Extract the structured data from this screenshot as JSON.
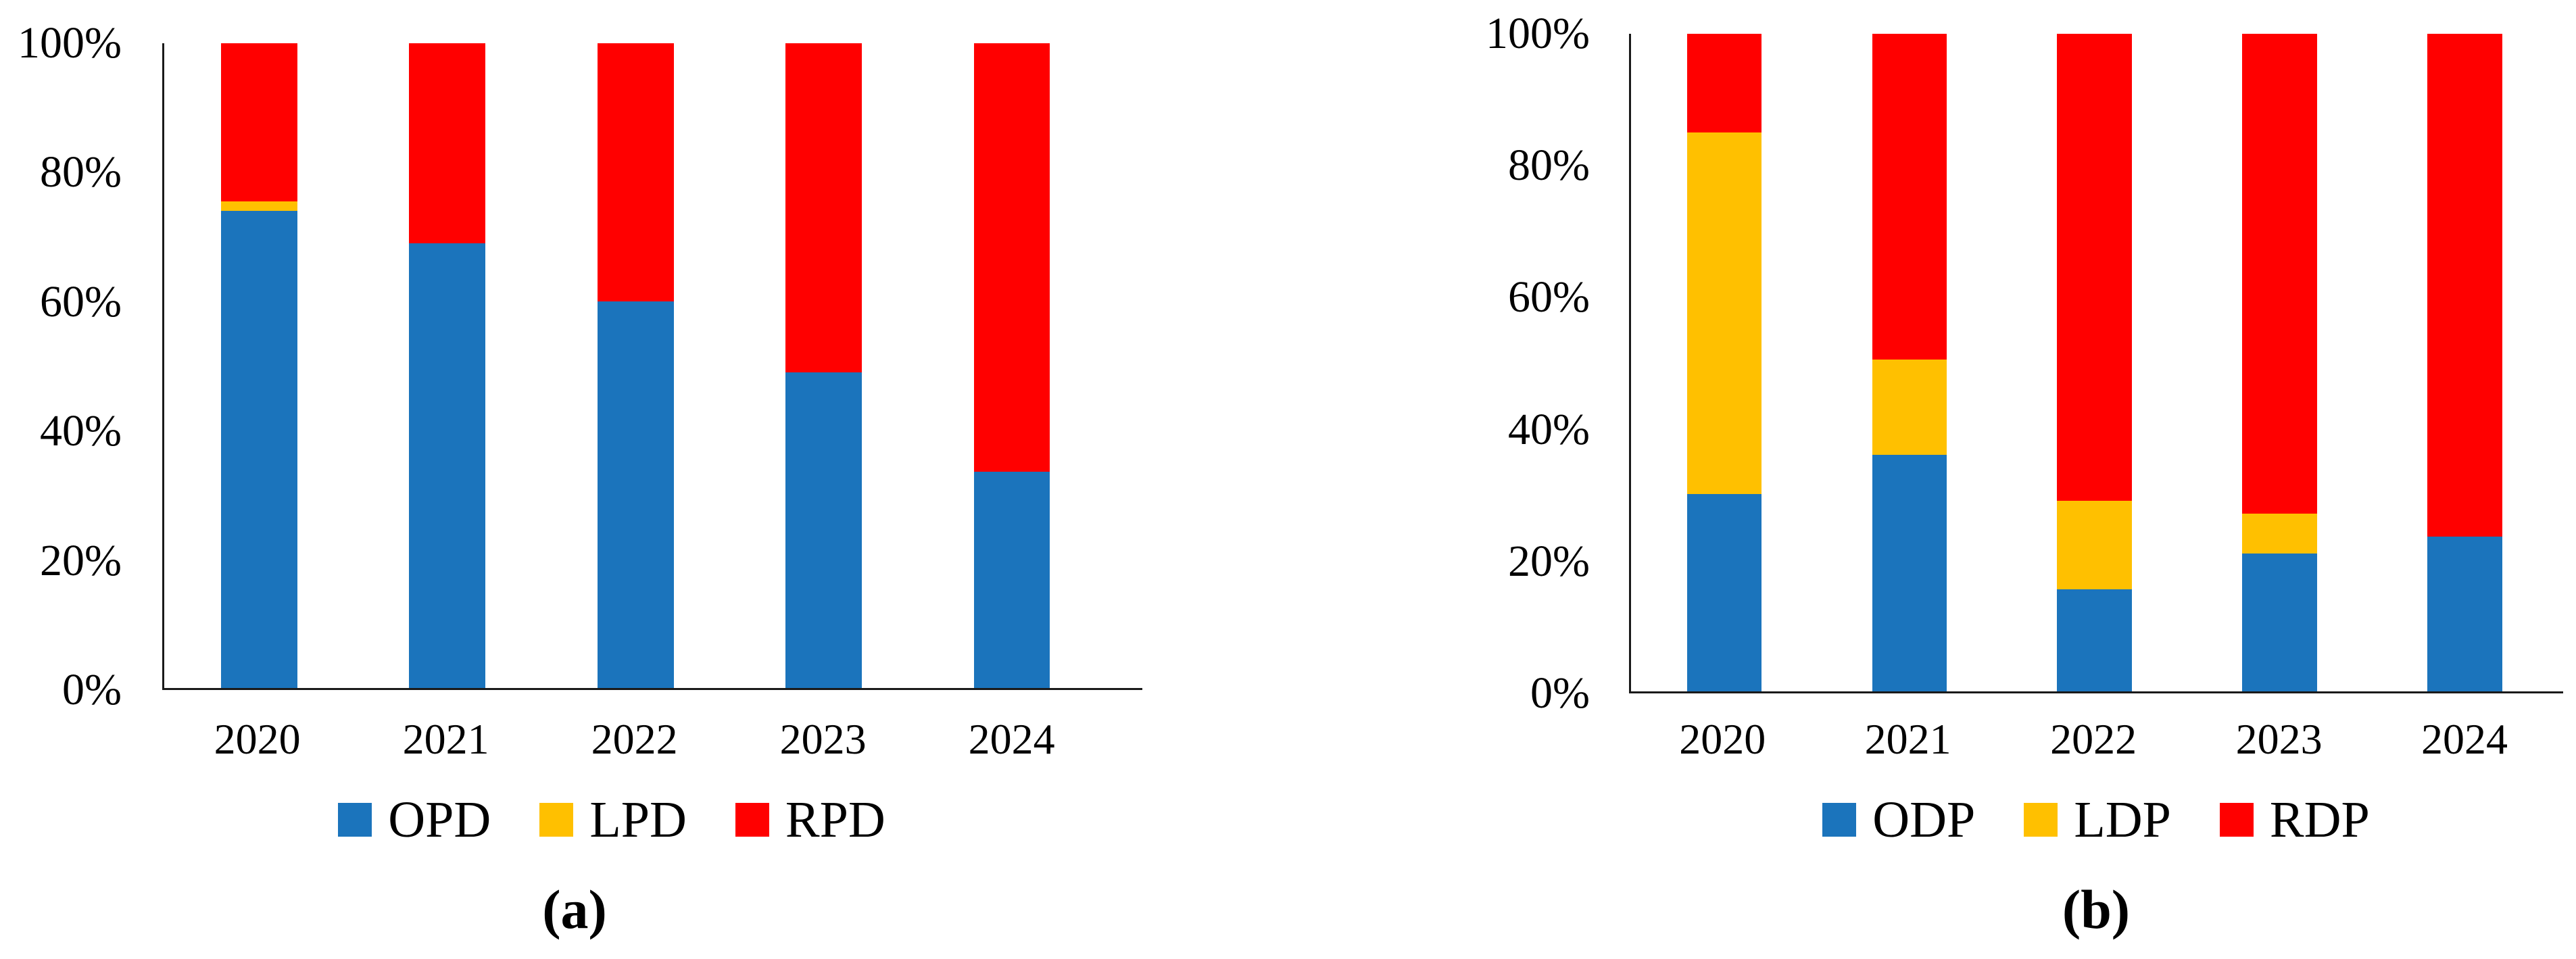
{
  "figure": {
    "background": "#ffffff",
    "text_color": "#000000",
    "axis_color": "#1a1a1a",
    "palette": {
      "blue": "#1b74bc",
      "yellow": "#ffc000",
      "red": "#ff0000"
    }
  },
  "chart_data": [
    {
      "type": "bar",
      "stacked": true,
      "percent": true,
      "title": "(a)",
      "categories": [
        "2020",
        "2021",
        "2022",
        "2023",
        "2024"
      ],
      "series": [
        {
          "name": "OPD",
          "color": "#1b74bc",
          "values": [
            74,
            69,
            60,
            49,
            33.5
          ]
        },
        {
          "name": "LPD",
          "color": "#ffc000",
          "values": [
            1.5,
            0,
            0,
            0,
            0
          ]
        },
        {
          "name": "RPD",
          "color": "#ff0000",
          "values": [
            24.5,
            31,
            40,
            51,
            66.5
          ]
        }
      ],
      "xlabel": "",
      "ylabel": "",
      "ylim": [
        0,
        100
      ],
      "yticks": [
        "0%",
        "20%",
        "40%",
        "60%",
        "80%",
        "100%"
      ],
      "grid": false,
      "legend_position": "bottom"
    },
    {
      "type": "bar",
      "stacked": true,
      "percent": true,
      "title": "(b)",
      "categories": [
        "2020",
        "2021",
        "2022",
        "2023",
        "2024"
      ],
      "series": [
        {
          "name": "ODP",
          "color": "#1b74bc",
          "values": [
            30,
            36,
            15.5,
            21,
            23.5
          ]
        },
        {
          "name": "LDP",
          "color": "#ffc000",
          "values": [
            55,
            14.5,
            13.5,
            6,
            0
          ]
        },
        {
          "name": "RDP",
          "color": "#ff0000",
          "values": [
            15,
            49.5,
            71,
            73,
            76.5
          ]
        }
      ],
      "xlabel": "",
      "ylabel": "",
      "ylim": [
        0,
        100
      ],
      "yticks": [
        "0%",
        "20%",
        "40%",
        "60%",
        "80%",
        "100%"
      ],
      "grid": false,
      "legend_position": "bottom"
    }
  ]
}
